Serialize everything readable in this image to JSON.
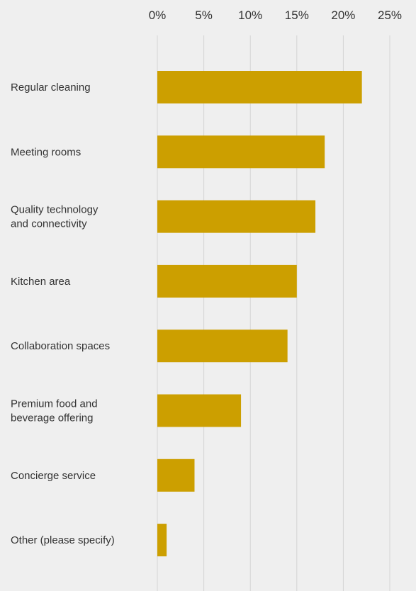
{
  "chart_data": {
    "type": "bar",
    "orientation": "horizontal",
    "categories": [
      [
        "Regular cleaning"
      ],
      [
        "Meeting rooms"
      ],
      [
        "Quality technology",
        "and connectivity"
      ],
      [
        "Kitchen area"
      ],
      [
        "Collaboration spaces"
      ],
      [
        "Premium food and",
        "beverage offering"
      ],
      [
        "Concierge service"
      ],
      [
        "Other (please specify)"
      ]
    ],
    "values": [
      22,
      18,
      17,
      15,
      14,
      9,
      4,
      1
    ],
    "xlim": [
      0,
      25
    ],
    "x_ticks": [
      0,
      5,
      10,
      15,
      20,
      25
    ],
    "x_tick_labels": [
      "0%",
      "5%",
      "10%",
      "15%",
      "20%",
      "25%"
    ],
    "x_axis_position": "top",
    "grid": true,
    "legend": "none",
    "bar_color": "#cc9f00",
    "background_color": "#efefef",
    "gridline_color": "#d4d4d4",
    "text_color": "#333333"
  }
}
